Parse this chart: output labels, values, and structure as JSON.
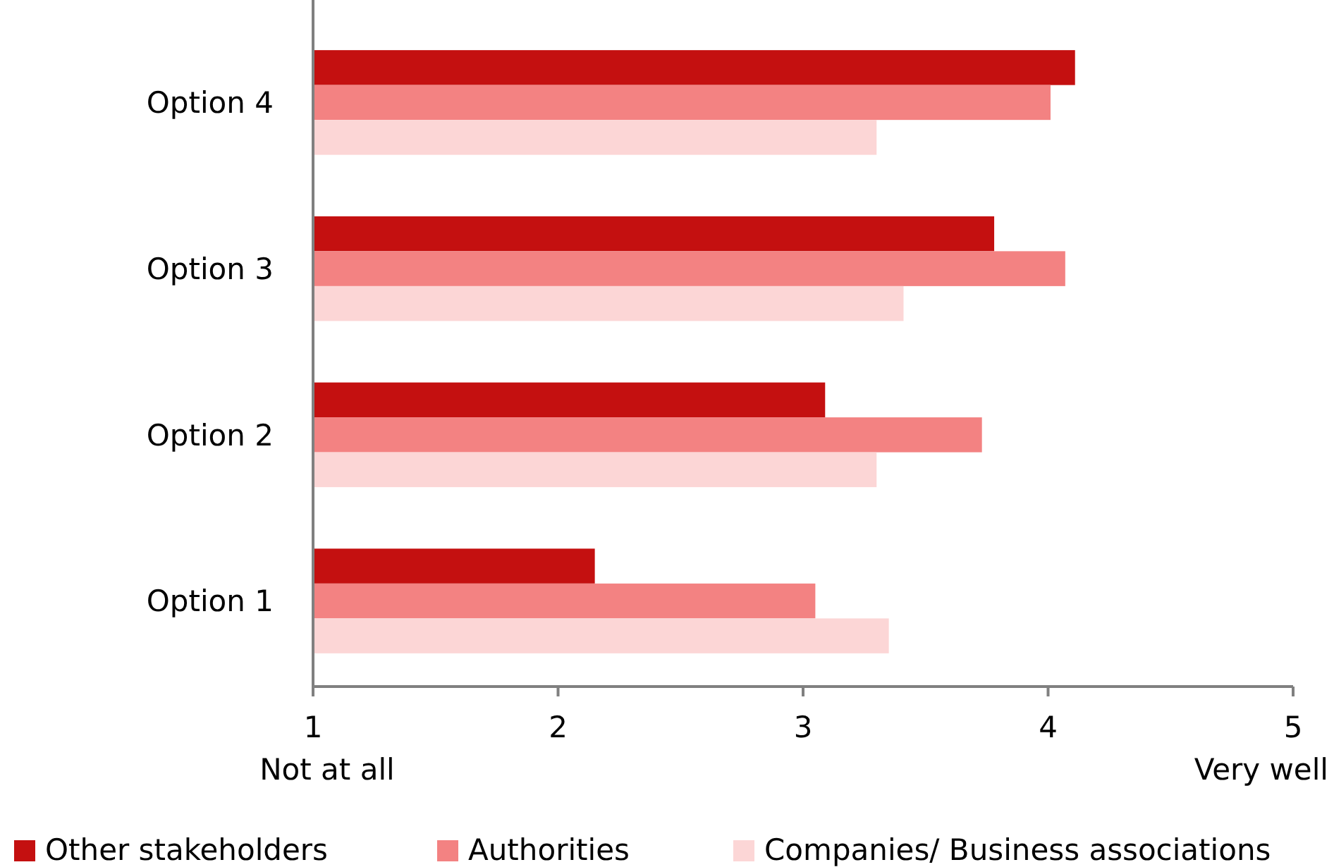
{
  "chart_data": {
    "type": "bar",
    "orientation": "horizontal",
    "categories": [
      "Option 4",
      "Option 3",
      "Option 2",
      "Option 1"
    ],
    "series": [
      {
        "name": "Other stakeholders",
        "color": "#c41010",
        "values": [
          4.11,
          3.78,
          3.09,
          2.15
        ]
      },
      {
        "name": "Authorities",
        "color": "#f38282",
        "values": [
          4.01,
          4.07,
          3.73,
          3.05
        ]
      },
      {
        "name": "Companies/ Business associations",
        "color": "#fcd6d6",
        "values": [
          3.3,
          3.41,
          3.3,
          3.35
        ]
      }
    ],
    "xlim": [
      1,
      5
    ],
    "xticks": [
      1,
      2,
      3,
      4,
      5
    ],
    "annotations": [
      "Not at all",
      "Very well"
    ],
    "grid": false,
    "legend": "bottom"
  }
}
